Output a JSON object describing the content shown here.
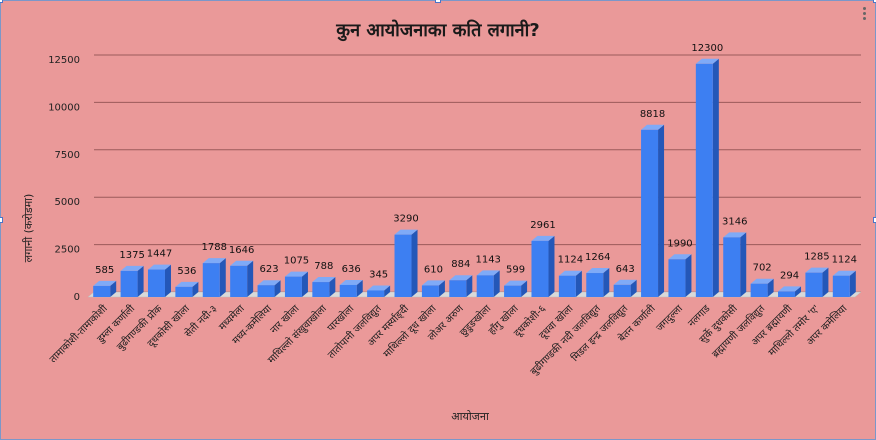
{
  "chart_data": {
    "type": "bar",
    "title": "कुन आयोजनाका कति लगानी?",
    "xlabel": "आयोजना",
    "ylabel": "लगानी (करोडमा)",
    "ylim": [
      0,
      12500
    ],
    "yticks": [
      0,
      2500,
      5000,
      7500,
      10000,
      12500
    ],
    "ytick_labels": [
      "0",
      "2500",
      "5000",
      "7500",
      "10000",
      "12500"
    ],
    "grid": true,
    "legend": "none",
    "categories": [
      "तामाकोशी-तामाकोशी",
      "डुम्ला कर्णाली",
      "बुढीगण्डकी प्रोक",
      "दूधकोसी खोला",
      "सेती नदी-३",
      "मध्यमेला",
      "मध्य-कमेलिया",
      "नार खोला",
      "माथिल्लो संखुवाखोला",
      "पारखोला",
      "तातोपानी जलविद्युत",
      "अपर मर्स्याङ्दी",
      "माथिल्लो दूध खोला",
      "लोअर अरुण",
      "छुडुङखोला",
      "हाँगु खोला",
      "दूधकोशी-६",
      "दूधवा खोला",
      "बुढीगण्डकी नदी जलविद्युत",
      "मिडल इन्द्र जलविद्युत",
      "बेतन कर्णाली",
      "जगदुल्ला",
      "नलगाड",
      "सुर्के दुधकोसी",
      "ब्रह्मायणी जलविद्युत",
      "अपर ब्रह्मायणी",
      "माथिल्लो तमोर 'ए'",
      "अपर कमेलिया"
    ],
    "values": [
      585,
      1375,
      1447,
      536,
      1788,
      1646,
      623,
      1075,
      788,
      636,
      345,
      3290,
      610,
      884,
      1143,
      599,
      2961,
      1124,
      1264,
      643,
      8818,
      1990,
      12300,
      3146,
      702,
      294,
      1285,
      1124
    ],
    "data_labels": [
      "585",
      "1375",
      "1447",
      "536",
      "1788",
      "1646",
      "623",
      "1075",
      "788",
      "636",
      "345",
      "3290",
      "610",
      "884",
      "1143",
      "599",
      "2961",
      "1124",
      "1264",
      "643",
      "8818",
      "1990",
      "12300",
      "3146",
      "702",
      "294",
      "1285",
      "1124"
    ],
    "colors": {
      "background": "#ea9999",
      "bar_front": "#3d7ff2",
      "bar_side": "#2457b8",
      "bar_top": "#7faaf7",
      "grid": "#9b5a5a",
      "floor": "#d9d9d9"
    }
  }
}
